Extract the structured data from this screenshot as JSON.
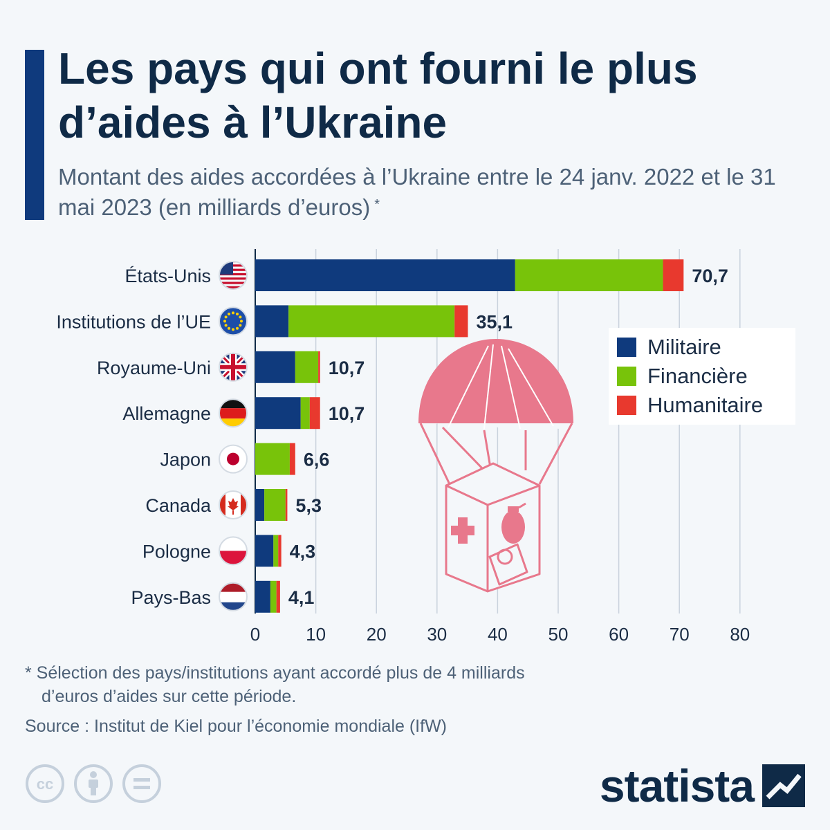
{
  "header": {
    "title": "Les pays qui ont fourni le plus d’aides à l’Ukraine",
    "subtitle": "Montant des aides accordées à l’Ukraine entre le 24 janv. 2022 et le 31 mai 2023 (en milliards d’euros)",
    "subtitle_marker": "*"
  },
  "chart_data": {
    "type": "bar",
    "orientation": "horizontal",
    "stacked": true,
    "categories": [
      "États-Unis",
      "Institutions de l’UE",
      "Royaume-Uni",
      "Allemagne",
      "Japon",
      "Canada",
      "Pologne",
      "Pays-Bas"
    ],
    "flags": [
      "us-flag-icon",
      "eu-flag-icon",
      "uk-flag-icon",
      "germany-flag-icon",
      "japan-flag-icon",
      "canada-flag-icon",
      "poland-flag-icon",
      "netherlands-flag-icon"
    ],
    "series": [
      {
        "name": "Militaire",
        "color": "#0f3a7d",
        "values": [
          42.9,
          5.5,
          6.6,
          7.5,
          0,
          1.5,
          3.0,
          2.5
        ]
      },
      {
        "name": "Financière",
        "color": "#78c30a",
        "values": [
          24.4,
          27.4,
          3.8,
          1.5,
          5.7,
          3.5,
          0.8,
          1.0
        ]
      },
      {
        "name": "Humanitaire",
        "color": "#e8392e",
        "values": [
          3.4,
          2.2,
          0.3,
          1.7,
          0.9,
          0.3,
          0.5,
          0.6
        ]
      }
    ],
    "totals": [
      70.7,
      35.1,
      10.7,
      10.7,
      6.6,
      5.3,
      4.3,
      4.1
    ],
    "total_labels": [
      "70,7",
      "35,1",
      "10,7",
      "10,7",
      "6,6",
      "5,3",
      "4,3",
      "4,1"
    ],
    "xlim": [
      0,
      80
    ],
    "xticks": [
      0,
      10,
      20,
      30,
      40,
      50,
      60,
      70,
      80
    ],
    "grid": true,
    "legend_position": "right"
  },
  "legend": {
    "items": [
      {
        "label": "Militaire",
        "color": "#0f3a7d"
      },
      {
        "label": "Financière",
        "color": "#78c30a"
      },
      {
        "label": "Humanitaire",
        "color": "#e8392e"
      }
    ]
  },
  "illustration": "parachute-aid-crate-icon",
  "footer": {
    "note_line1": "* Sélection des pays/institutions ayant accordé plus de 4 milliards",
    "note_line2": "d’euros d’aides sur cette période.",
    "source": "Source : Institut de Kiel pour l’économie mondiale (IfW)",
    "brand": "statista",
    "license_icons": [
      "creative-commons-icon",
      "attribution-icon",
      "no-derivatives-icon"
    ]
  }
}
